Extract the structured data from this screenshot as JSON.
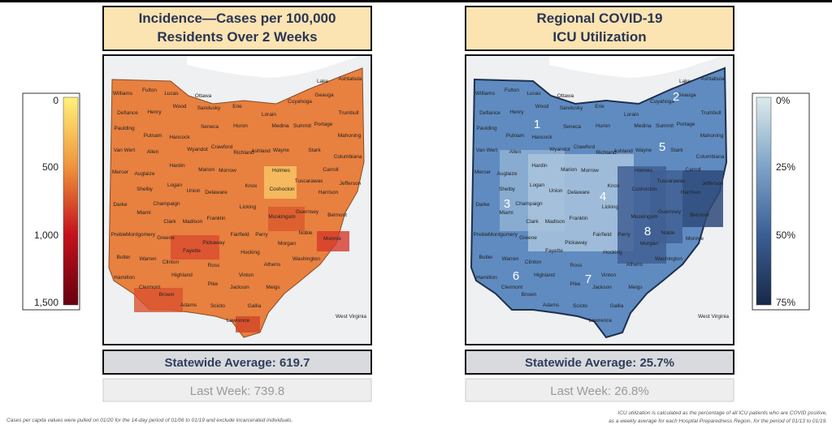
{
  "left_panel": {
    "title_line1": "Incidence—Cases per 100,000",
    "title_line2": "Residents Over 2 Weeks",
    "legend": [
      "0",
      "500",
      "1,000",
      "1,500"
    ],
    "statewide_average": "Statewide Average: 619.7",
    "last_week": "Last Week: 739.8"
  },
  "right_panel": {
    "title_line1": "Regional COVID-19",
    "title_line2": "ICU Utilization",
    "legend": [
      "0%",
      "25%",
      "50%",
      "75%"
    ],
    "regions": [
      "1",
      "2",
      "3",
      "4",
      "5",
      "6",
      "7",
      "8"
    ],
    "statewide_average": "Statewide Average: 25.7%",
    "last_week": "Last Week: 26.8%"
  },
  "counties": [
    "Williams",
    "Fulton",
    "Lucas",
    "Ottawa",
    "Wood",
    "Sandusky",
    "Erie",
    "Lorain",
    "Cuyahoga",
    "Lake",
    "Ashtabula",
    "Geauga",
    "Trumbull",
    "Portage",
    "Summit",
    "Medina",
    "Defiance",
    "Henry",
    "Paulding",
    "Putnam",
    "Hancock",
    "Seneca",
    "Huron",
    "Mahoning",
    "Van Wert",
    "Allen",
    "Wyandot",
    "Crawford",
    "Richland",
    "Ashland",
    "Wayne",
    "Stark",
    "Columbiana",
    "Hardin",
    "Marion",
    "Morrow",
    "Holmes",
    "Carroll",
    "Mercer",
    "Auglaize",
    "Knox",
    "Tuscarawas",
    "Jefferson",
    "Shelby",
    "Logan",
    "Union",
    "Delaware",
    "Coshocton",
    "Harrison",
    "Darke",
    "Champaign",
    "Licking",
    "Miami",
    "Clark",
    "Madison",
    "Franklin",
    "Guernsey",
    "Belmont",
    "Muskingum",
    "Preble",
    "Montgomery",
    "Greene",
    "Fairfield",
    "Perry",
    "Noble",
    "Pickaway",
    "Fayette",
    "Morgan",
    "Monroe",
    "Butler",
    "Warren",
    "Clinton",
    "Hocking",
    "Washington",
    "Ross",
    "Athens",
    "Hamilton",
    "Highland",
    "Vinton",
    "Clermont",
    "Pike",
    "Meigs",
    "Jackson",
    "Brown",
    "Adams",
    "Scioto",
    "Gallia",
    "Lawrence"
  ],
  "neighbor_label": "West Virginia",
  "footnotes": {
    "left": "Cases per capita values were pulled on 01/20 for the 14-day period of 01/06 to 01/19 and exclude incarcerated individuals.",
    "right_line1": "ICU utilization is calculated as the percentage of all ICU patients who are COVID positive,",
    "right_line2": "as a weekly average for each Hospital Preparedness Region, for the period of 01/13 to 01/19."
  }
}
